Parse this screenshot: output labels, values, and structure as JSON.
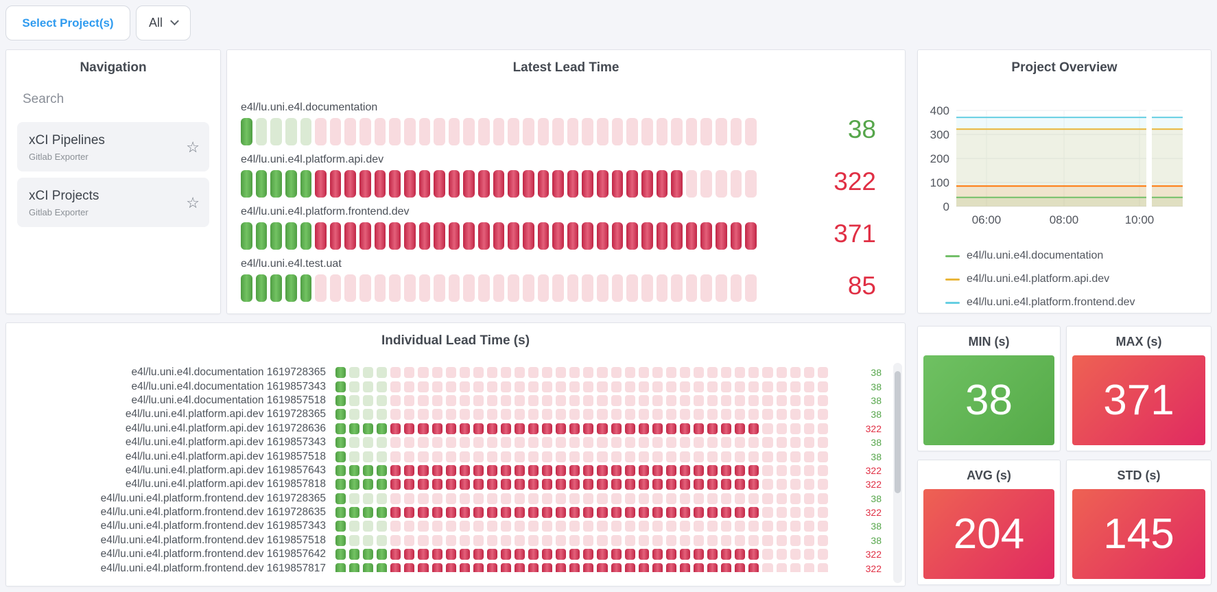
{
  "colors": {
    "accent_blue": "#2f9bef",
    "value_green": "#56a64b",
    "value_red": "#e02f44",
    "panel_bg": "#ffffff",
    "page_bg": "#f4f5f9"
  },
  "gauge_colors": {
    "on-green": [
      "#4f9e43",
      "#73c363"
    ],
    "dim-green": [
      "#dbead4",
      "#dbead4"
    ],
    "on-red": [
      "#c12646",
      "#e4607a"
    ],
    "dim-red": [
      "#f8dbdf",
      "#f8dbdf"
    ]
  },
  "stat_gradients": {
    "green": [
      "#6fc162",
      "#55aa48"
    ],
    "red": [
      "#ee6253",
      "#e02a61"
    ]
  },
  "toolbar": {
    "select_projects_label": "Select Project(s)",
    "filter_label": "All",
    "chevron_icon": "chevron-down"
  },
  "navigation": {
    "title": "Navigation",
    "search_placeholder": "Search",
    "items": [
      {
        "title": "xCI Pipelines",
        "subtitle": "Gitlab Exporter",
        "star_icon": "☆"
      },
      {
        "title": "xCI Projects",
        "subtitle": "Gitlab Exporter",
        "star_icon": "☆"
      }
    ]
  },
  "latest": {
    "title": "Latest Lead Time",
    "cells_per_row": 35,
    "rows": [
      {
        "label": "e4l/lu.uni.e4l.documentation",
        "value": "38",
        "tone": "green",
        "segments": [
          [
            "on-green",
            1
          ],
          [
            "dim-green",
            4
          ],
          [
            "dim-red",
            30
          ]
        ]
      },
      {
        "label": "e4l/lu.uni.e4l.platform.api.dev",
        "value": "322",
        "tone": "red",
        "segments": [
          [
            "on-green",
            5
          ],
          [
            "on-red",
            25
          ],
          [
            "dim-red",
            5
          ]
        ]
      },
      {
        "label": "e4l/lu.uni.e4l.platform.frontend.dev",
        "value": "371",
        "tone": "red",
        "segments": [
          [
            "on-green",
            5
          ],
          [
            "on-red",
            30
          ]
        ]
      },
      {
        "label": "e4l/lu.uni.e4l.test.uat",
        "value": "85",
        "tone": "red",
        "segments": [
          [
            "on-green",
            5
          ],
          [
            "dim-red",
            30
          ]
        ]
      }
    ]
  },
  "project_overview": {
    "title": "Project Overview",
    "chart_data": {
      "type": "line",
      "title": "Project Overview",
      "xlabel": "",
      "ylabel": "",
      "x_ticks": [
        "06:00",
        "08:00",
        "10:00"
      ],
      "y_ticks": [
        0,
        100,
        200,
        300,
        400
      ],
      "ylim": [
        0,
        400
      ],
      "grid": true,
      "legend_position": "bottom",
      "data_gap_near": "10:20",
      "series": [
        {
          "name": "e4l/lu.uni.e4l.documentation",
          "color": "#73bf69",
          "values": [
            38,
            38
          ],
          "in_legend": true
        },
        {
          "name": "e4l/lu.uni.e4l.platform.api.dev",
          "color": "#e9b63b",
          "values": [
            322,
            322
          ],
          "in_legend": true
        },
        {
          "name": "e4l/lu.uni.e4l.platform.frontend.dev",
          "color": "#66cfe2",
          "values": [
            371,
            371
          ],
          "in_legend": true
        },
        {
          "name": "e4l/lu.uni.e4l.test.uat",
          "color": "#ff780a",
          "values": [
            85,
            85
          ],
          "in_legend": false
        }
      ]
    }
  },
  "individual": {
    "title": "Individual Lead Time (s)",
    "cells_per_row": 36,
    "patterns": {
      "38": [
        [
          "on-green",
          1
        ],
        [
          "dim-green",
          3
        ],
        [
          "dim-red",
          32
        ]
      ],
      "322": [
        [
          "on-green",
          4
        ],
        [
          "on-red",
          27
        ],
        [
          "dim-red",
          5
        ]
      ]
    },
    "rows": [
      {
        "project": "e4l/lu.uni.e4l.documentation",
        "ts": "1619728365",
        "value": "38",
        "tone": "green"
      },
      {
        "project": "e4l/lu.uni.e4l.documentation",
        "ts": "1619857343",
        "value": "38",
        "tone": "green"
      },
      {
        "project": "e4l/lu.uni.e4l.documentation",
        "ts": "1619857518",
        "value": "38",
        "tone": "green"
      },
      {
        "project": "e4l/lu.uni.e4l.platform.api.dev",
        "ts": "1619728365",
        "value": "38",
        "tone": "green"
      },
      {
        "project": "e4l/lu.uni.e4l.platform.api.dev",
        "ts": "1619728636",
        "value": "322",
        "tone": "red"
      },
      {
        "project": "e4l/lu.uni.e4l.platform.api.dev",
        "ts": "1619857343",
        "value": "38",
        "tone": "green"
      },
      {
        "project": "e4l/lu.uni.e4l.platform.api.dev",
        "ts": "1619857518",
        "value": "38",
        "tone": "green"
      },
      {
        "project": "e4l/lu.uni.e4l.platform.api.dev",
        "ts": "1619857643",
        "value": "322",
        "tone": "red"
      },
      {
        "project": "e4l/lu.uni.e4l.platform.api.dev",
        "ts": "1619857818",
        "value": "322",
        "tone": "red"
      },
      {
        "project": "e4l/lu.uni.e4l.platform.frontend.dev",
        "ts": "1619728365",
        "value": "38",
        "tone": "green"
      },
      {
        "project": "e4l/lu.uni.e4l.platform.frontend.dev",
        "ts": "1619728635",
        "value": "322",
        "tone": "red"
      },
      {
        "project": "e4l/lu.uni.e4l.platform.frontend.dev",
        "ts": "1619857343",
        "value": "38",
        "tone": "green"
      },
      {
        "project": "e4l/lu.uni.e4l.platform.frontend.dev",
        "ts": "1619857518",
        "value": "38",
        "tone": "green"
      },
      {
        "project": "e4l/lu.uni.e4l.platform.frontend.dev",
        "ts": "1619857642",
        "value": "322",
        "tone": "red"
      },
      {
        "project": "e4l/lu.uni.e4l.platform.frontend.dev",
        "ts": "1619857817",
        "value": "322",
        "tone": "red"
      }
    ]
  },
  "stats": [
    {
      "title": "MIN (s)",
      "value": "38",
      "tone": "green"
    },
    {
      "title": "MAX (s)",
      "value": "371",
      "tone": "red"
    },
    {
      "title": "AVG (s)",
      "value": "204",
      "tone": "red"
    },
    {
      "title": "STD (s)",
      "value": "145",
      "tone": "red"
    }
  ]
}
